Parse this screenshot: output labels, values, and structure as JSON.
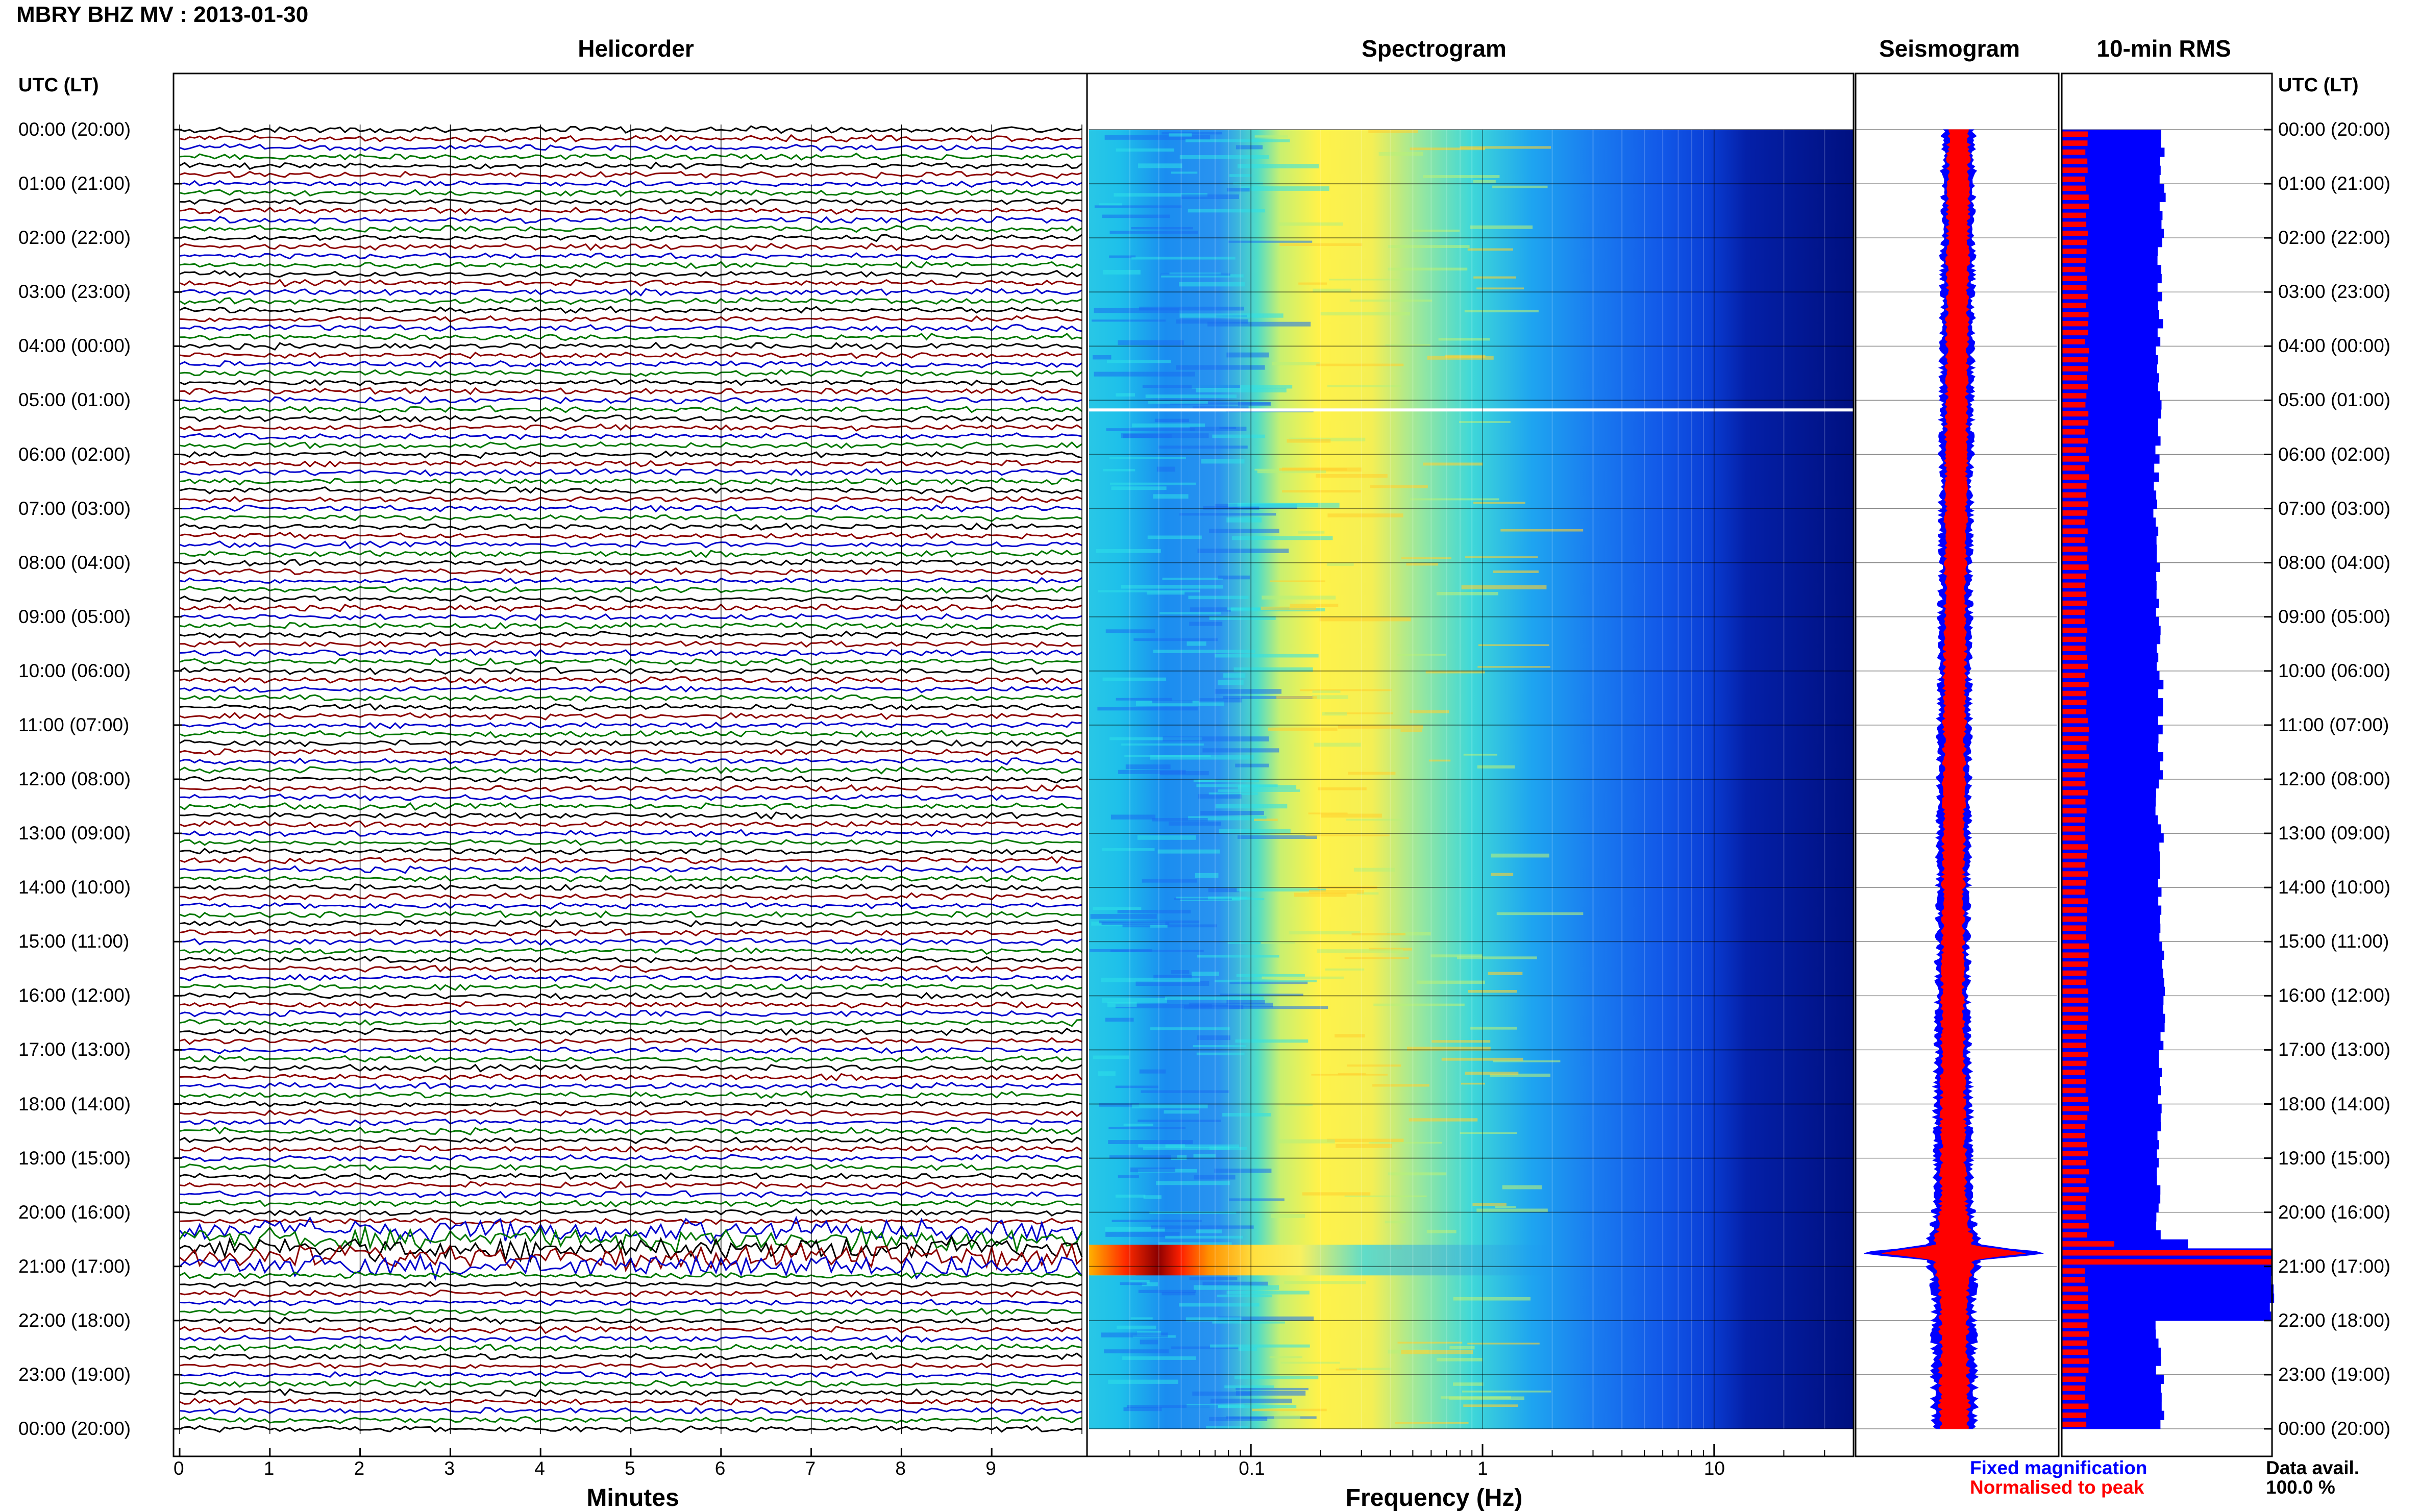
{
  "header": {
    "title": "MBRY BHZ MV : 2013-01-30"
  },
  "panels": {
    "helicorder": "Helicorder",
    "spectrogram": "Spectrogram",
    "seismogram": "Seismogram",
    "rms": "10-min RMS"
  },
  "time_axis": {
    "left_title": "UTC (LT)",
    "right_title": "UTC (LT)",
    "labels": [
      "00:00 (20:00)",
      "01:00 (21:00)",
      "02:00 (22:00)",
      "03:00 (23:00)",
      "04:00 (00:00)",
      "05:00 (01:00)",
      "06:00 (02:00)",
      "07:00 (03:00)",
      "08:00 (04:00)",
      "09:00 (05:00)",
      "10:00 (06:00)",
      "11:00 (07:00)",
      "12:00 (08:00)",
      "13:00 (09:00)",
      "14:00 (10:00)",
      "15:00 (11:00)",
      "16:00 (12:00)",
      "17:00 (13:00)",
      "18:00 (14:00)",
      "19:00 (15:00)",
      "20:00 (16:00)",
      "21:00 (17:00)",
      "22:00 (18:00)",
      "23:00 (19:00)",
      "00:00 (20:00)"
    ]
  },
  "legend": {
    "fixed": "Fixed magnification",
    "normalised": "Normalised to peak",
    "data_avail_label": "Data avail.",
    "data_avail_value": "100.0 %"
  },
  "colors": {
    "helicorder_traces": [
      "#000000",
      "#8b0000",
      "#0000cc",
      "#007700"
    ],
    "fixed_magnification": "#0000ff",
    "normalised_to_peak": "#ff0000",
    "spectrogram_scale": [
      "#00008b",
      "#0050ff",
      "#00aaff",
      "#40e0d0",
      "#ffff40",
      "#ffa000",
      "#ff0000",
      "#8b0000"
    ]
  },
  "chart_data": [
    {
      "type": "line",
      "name": "Helicorder",
      "xlabel": "Minutes",
      "xticks": [
        0,
        1,
        2,
        3,
        4,
        5,
        6,
        7,
        8,
        9
      ],
      "xlim": [
        0,
        10
      ],
      "rows_per_hour": 6,
      "traces_per_day": 144,
      "event": {
        "start_utc": "20:20",
        "end_utc": "21:00",
        "note": "large-amplitude oscillations"
      }
    },
    {
      "type": "heatmap",
      "name": "Spectrogram",
      "xlabel": "Frequency (Hz)",
      "xscale": "log",
      "xticks": [
        0.1,
        1,
        10
      ],
      "xlim": [
        0.02,
        40
      ],
      "yaxis": "UTC time (00:00 to 24:00)",
      "features": [
        {
          "type": "peak-energy band",
          "freq_range_hz": [
            0.15,
            0.5
          ]
        },
        {
          "type": "strong event",
          "time_utc": "20:40",
          "freq_range_hz": [
            0.03,
            0.25
          ]
        },
        {
          "type": "data gap line",
          "time_utc": "05:10"
        }
      ]
    },
    {
      "type": "line",
      "name": "Seismogram",
      "series": [
        {
          "name": "Fixed magnification",
          "color": "#0000ff"
        },
        {
          "name": "Normalised to peak",
          "color": "#ff0000"
        }
      ],
      "peak_time_utc": "20:45"
    },
    {
      "type": "bar",
      "name": "10-min RMS",
      "orientation": "horizontal",
      "categories_note": "144 ten-minute bins from 00:00 to 24:00 UTC",
      "series": [
        {
          "name": "Fixed magnification",
          "hourly_level_pct": [
            48,
            48,
            47,
            47,
            46,
            46,
            45,
            45,
            46,
            46,
            47,
            47,
            46,
            47,
            47,
            48,
            48,
            47,
            46,
            46,
            46,
            100,
            46,
            48,
            48
          ],
          "event_peak_pct": 100
        },
        {
          "name": "Normalised to peak",
          "level_pct": 12,
          "event_peak_pct": 100
        }
      ]
    }
  ]
}
